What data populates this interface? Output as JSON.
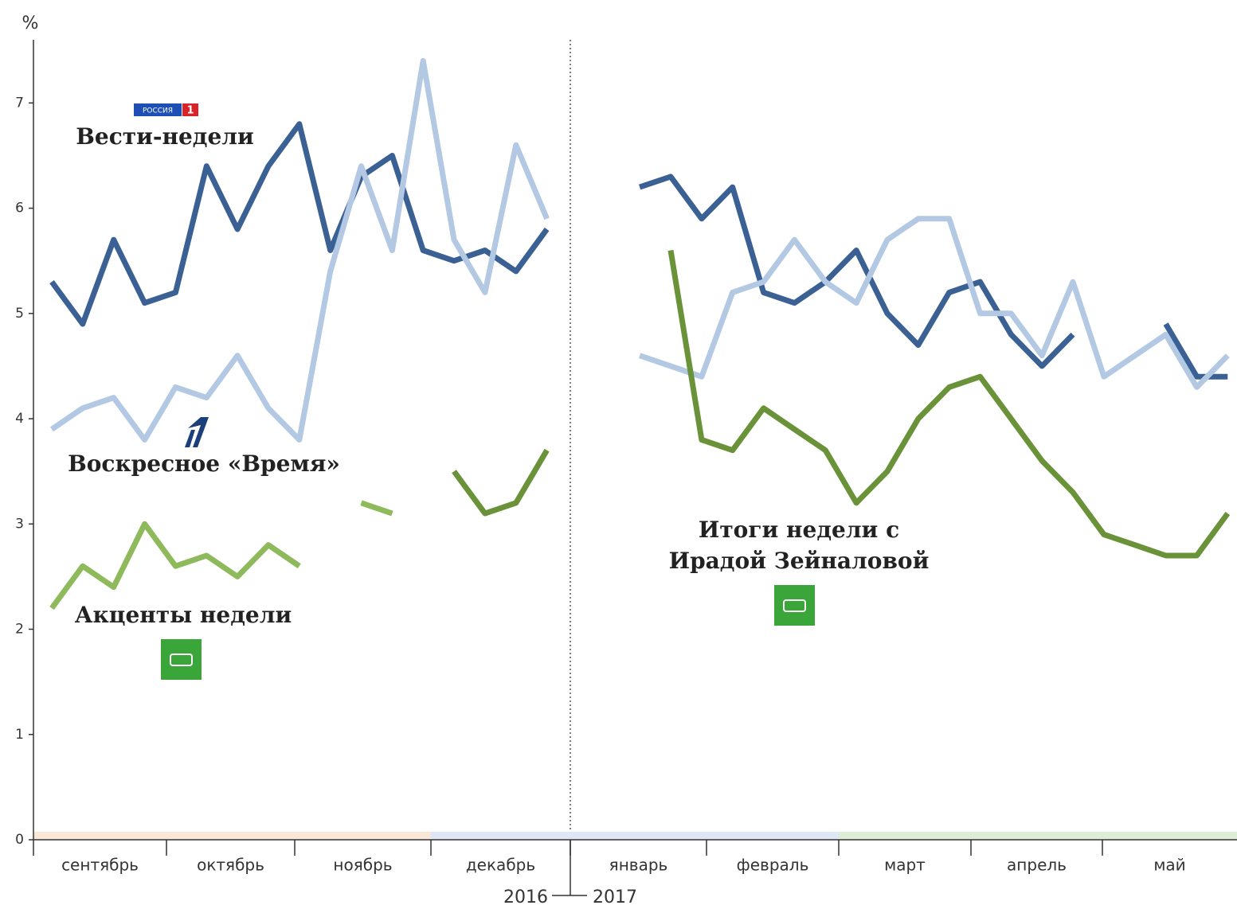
{
  "chart_data": {
    "type": "line",
    "y_axis_label": "%",
    "categories": [
      null,
      null,
      null,
      null,
      null,
      null,
      null,
      null,
      null,
      null,
      null,
      null,
      null,
      null,
      null,
      null,
      null,
      null,
      null,
      null,
      null,
      null,
      null,
      null,
      null,
      null,
      null,
      null,
      null,
      null,
      null,
      null,
      null,
      null,
      null,
      null,
      null,
      null,
      null
    ],
    "months": [
      "сентябрь",
      "октябрь",
      "ноябрь",
      "декабрь",
      "январь",
      "февраль",
      "март",
      "апрель",
      "май"
    ],
    "years": [
      "2016",
      "2017"
    ],
    "ylim": [
      0,
      7.6
    ],
    "yticks": [
      0,
      1,
      2,
      3,
      4,
      5,
      6,
      7
    ],
    "logo_text": [
      "РОССИЯ",
      "1"
    ],
    "series": [
      {
        "name": "Вести-недели",
        "color": "#3a6094",
        "values": [
          5.3,
          4.9,
          5.7,
          5.1,
          5.2,
          6.4,
          5.8,
          6.4,
          6.8,
          5.6,
          6.3,
          6.5,
          5.6,
          5.5,
          5.6,
          5.4,
          5.8,
          null,
          null,
          6.2,
          6.3,
          5.9,
          6.2,
          5.2,
          5.1,
          5.3,
          5.6,
          5.0,
          4.7,
          5.2,
          5.3,
          4.8,
          4.5,
          4.8,
          null,
          null,
          4.9,
          4.4,
          4.4
        ]
      },
      {
        "name": "Воскресное «Время»",
        "color": "#b3c8e2",
        "values": [
          3.9,
          4.1,
          4.2,
          3.8,
          4.3,
          4.2,
          4.6,
          4.1,
          3.8,
          5.4,
          6.4,
          5.6,
          7.4,
          5.7,
          5.2,
          6.6,
          5.9,
          null,
          null,
          4.6,
          4.5,
          4.4,
          5.2,
          5.3,
          5.7,
          5.3,
          5.1,
          5.7,
          5.9,
          5.9,
          5.0,
          5.0,
          4.6,
          5.3,
          4.4,
          4.6,
          4.8,
          4.3,
          4.6
        ]
      },
      {
        "name": "Акценты недели",
        "color": "#8fba5c",
        "values": [
          2.2,
          2.6,
          2.4,
          3.0,
          2.6,
          2.7,
          2.5,
          2.8,
          2.6,
          null,
          3.2,
          3.1,
          null,
          null,
          null,
          null,
          null,
          null,
          null,
          null,
          null,
          null,
          null,
          null,
          null,
          null,
          null,
          null,
          null,
          null,
          null,
          null,
          null,
          null,
          null,
          null,
          null,
          null,
          null
        ]
      },
      {
        "name": "Итоги недели с Ирадой Зейналовой",
        "color": "#6a9238",
        "values": [
          null,
          null,
          null,
          null,
          null,
          null,
          null,
          null,
          null,
          null,
          null,
          null,
          null,
          3.5,
          3.1,
          3.2,
          3.7,
          null,
          null,
          null,
          5.6,
          3.8,
          3.7,
          4.1,
          3.9,
          3.7,
          3.2,
          3.5,
          4.0,
          4.3,
          4.4,
          4.0,
          3.6,
          3.3,
          2.9,
          2.8,
          2.7,
          2.7,
          3.1
        ]
      }
    ]
  }
}
